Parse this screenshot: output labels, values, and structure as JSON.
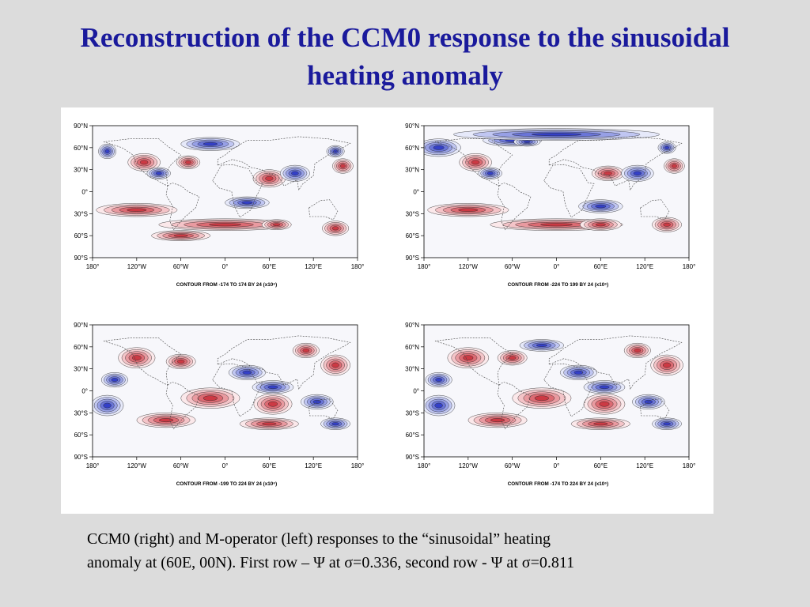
{
  "slide": {
    "title_line1": "Reconstruction of the CCM0 response to the sinusoidal",
    "title_line2": "heating anomaly"
  },
  "panels": [
    {
      "id": "top-left",
      "lat_labels": [
        "90°N",
        "60°N",
        "30°N",
        "0°",
        "30°S",
        "60°S",
        "90°S"
      ],
      "lon_labels": [
        "180°",
        "120°W",
        "60°W",
        "0°",
        "60°E",
        "120°E",
        "180°"
      ],
      "contour_caption": "CONTOUR FROM -174 TO 174 BY 24 (x10⁶)"
    },
    {
      "id": "top-right",
      "lat_labels": [
        "90°N",
        "60°N",
        "30°N",
        "0°",
        "30°S",
        "60°S",
        "90°S"
      ],
      "lon_labels": [
        "180°",
        "120°W",
        "60°W",
        "0°",
        "60°E",
        "120°E",
        "180°"
      ],
      "contour_caption": "CONTOUR FROM -224 TO 199 BY 24 (x10⁶)"
    },
    {
      "id": "bottom-left",
      "lat_labels": [
        "90°N",
        "60°N",
        "30°N",
        "0°",
        "30°S",
        "60°S",
        "90°S"
      ],
      "lon_labels": [
        "180°",
        "120°W",
        "60°W",
        "0°",
        "60°E",
        "120°E",
        "180°"
      ],
      "contour_caption": "CONTOUR FROM -199 TO 224 BY 24 (x10⁶)"
    },
    {
      "id": "bottom-right",
      "lat_labels": [
        "90°N",
        "60°N",
        "30°N",
        "0°",
        "30°S",
        "60°S",
        "90°S"
      ],
      "lon_labels": [
        "180°",
        "120°W",
        "60°W",
        "0°",
        "60°E",
        "120°E",
        "180°"
      ],
      "contour_caption": "CONTOUR FROM -174 TO 224 BY 24 (x10⁶)"
    }
  ],
  "caption": {
    "line1": "CCM0 (right) and M-operator (left) responses to the “sinusoidal” heating",
    "line2": "anomaly at (60E, 00N).  First row –  Ψ at σ=0.336, second row -  Ψ at σ=0.811"
  },
  "colors": {
    "title": "#1a1a9c",
    "positive_anomaly": "#d0303a",
    "negative_anomaly": "#2a3fd0",
    "background": "#dcdcdc"
  }
}
